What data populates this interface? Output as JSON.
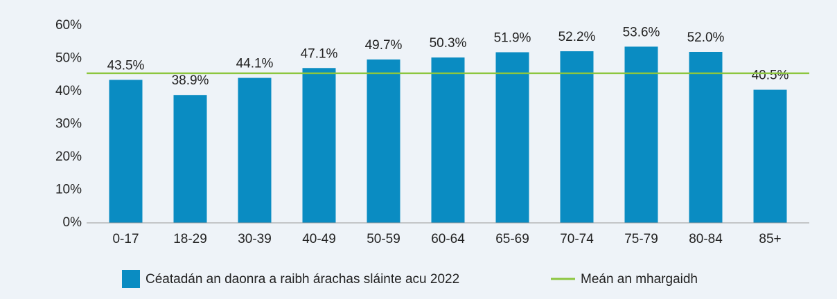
{
  "chart_data": {
    "type": "bar",
    "categories": [
      "0-17",
      "18-29",
      "30-39",
      "40-49",
      "50-59",
      "60-64",
      "65-69",
      "70-74",
      "75-79",
      "80-84",
      "85+"
    ],
    "series": [
      {
        "name": "Céatadán an daonra a raibh árachas sláinte acu 2022",
        "color": "#0a8cc2",
        "values": [
          43.5,
          38.9,
          44.1,
          47.1,
          49.7,
          50.3,
          51.9,
          52.2,
          53.6,
          52.0,
          40.5
        ],
        "value_labels": [
          "43.5%",
          "38.9%",
          "44.1%",
          "47.1%",
          "49.7%",
          "50.3%",
          "51.9%",
          "52.2%",
          "53.6%",
          "52.0%",
          "40.5%"
        ]
      }
    ],
    "mean_line": {
      "name": "Meán an mhargaidh",
      "value": 45.5,
      "color": "#8cc63f"
    },
    "ylim": [
      0,
      60
    ],
    "yticks": [
      {
        "value": 0,
        "label": "0%"
      },
      {
        "value": 10,
        "label": "10%"
      },
      {
        "value": 20,
        "label": "20%"
      },
      {
        "value": 30,
        "label": "30%"
      },
      {
        "value": 40,
        "label": "40%"
      },
      {
        "value": 50,
        "label": "50%"
      },
      {
        "value": 60,
        "label": "60%"
      }
    ],
    "grid": false
  }
}
